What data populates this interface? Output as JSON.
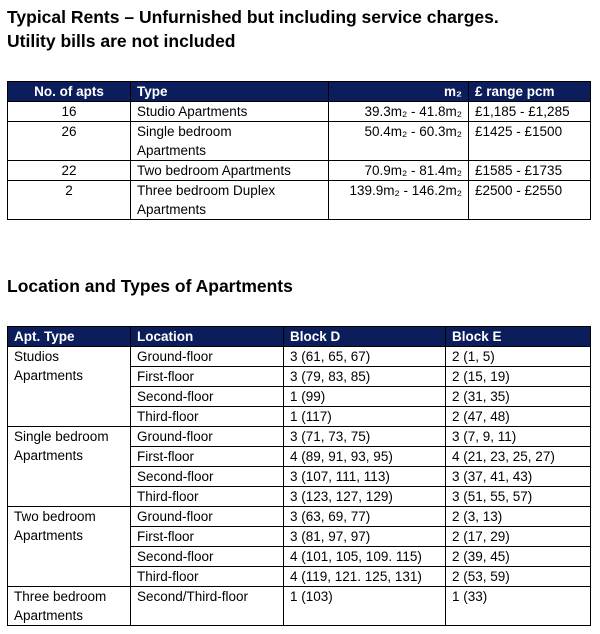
{
  "title": "Typical Rents – Unfurnished but including service charges.\nUtility bills are not included",
  "table1": {
    "header": [
      "No. of apts",
      "Type",
      "m₂",
      "£ range pcm"
    ],
    "rows": [
      [
        "16",
        "Studio Apartments",
        "39.3m₂ - 41.8m₂",
        "£1,185 - £1,285"
      ],
      [
        "26",
        "Single bedroom\nApartments",
        "50.4m₂ - 60.3m₂",
        "£1425 - £1500"
      ],
      [
        "22",
        "Two bedroom Apartments",
        "70.9m₂ - 81.4m₂",
        "£1585 - £1735"
      ],
      [
        "2",
        "Three bedroom Duplex\nApartments",
        "139.9m₂ - 146.2m₂",
        "£2500 - £2550"
      ]
    ]
  },
  "heading2": "Location and Types of Apartments",
  "table2": {
    "header": [
      "Apt. Type",
      "Location",
      "Block D",
      "Block E"
    ],
    "groups": [
      {
        "type": "Studios\nApartments",
        "rows": [
          [
            "Ground-floor",
            "3 (61, 65, 67)",
            "2 (1, 5)"
          ],
          [
            "First-floor",
            "3 (79, 83, 85)",
            "2 (15, 19)"
          ],
          [
            "Second-floor",
            "1 (99)",
            "2 (31, 35)"
          ],
          [
            "Third-floor",
            "1 (117)",
            "2 (47, 48)"
          ]
        ]
      },
      {
        "type": "Single bedroom\nApartments",
        "rows": [
          [
            "Ground-floor",
            "3 (71, 73, 75)",
            "3 (7, 9, 11)"
          ],
          [
            "First-floor",
            "4 (89, 91, 93, 95)",
            "4 (21, 23, 25, 27)"
          ],
          [
            "Second-floor",
            "3 (107, 111, 113)",
            "3 (37, 41, 43)"
          ],
          [
            "Third-floor",
            "3 (123, 127, 129)",
            "3 (51, 55, 57)"
          ]
        ]
      },
      {
        "type": "Two bedroom\nApartments",
        "rows": [
          [
            "Ground-floor",
            "3 (63, 69, 77)",
            "2 (3, 13)"
          ],
          [
            "First-floor",
            "3 (81, 97, 97)",
            "2 (17, 29)"
          ],
          [
            "Second-floor",
            "4 (101, 105, 109. 115)",
            "2 (39, 45)"
          ],
          [
            "Third-floor",
            "4 (119, 121. 125, 131)",
            "2 (53, 59)"
          ]
        ]
      },
      {
        "type": "Three bedroom\nApartments",
        "rows": [
          [
            "Second/Third-floor",
            "1 (103)",
            "1 (33)"
          ]
        ]
      }
    ]
  }
}
